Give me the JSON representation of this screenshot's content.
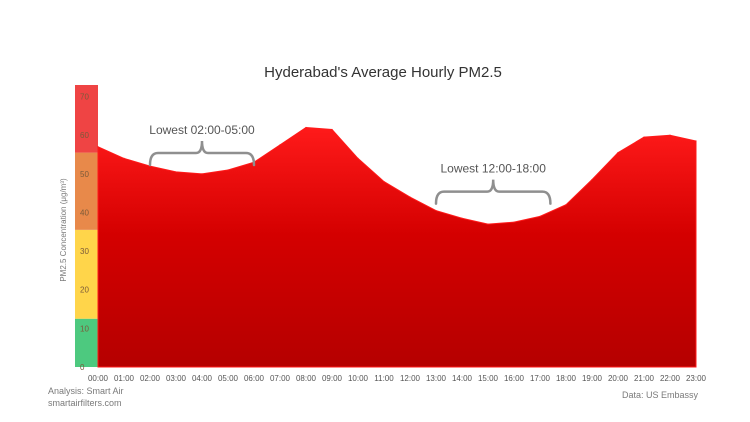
{
  "chart_data": {
    "type": "area",
    "title": "Hyderabad's Average Hourly PM2.5",
    "ylabel": "PM2.5 Concentration (μg/m³)",
    "xlabel": "",
    "ylim": [
      0,
      73
    ],
    "grid": false,
    "x": [
      "00:00",
      "01:00",
      "02:00",
      "03:00",
      "04:00",
      "05:00",
      "06:00",
      "07:00",
      "08:00",
      "09:00",
      "10:00",
      "11:00",
      "12:00",
      "13:00",
      "14:00",
      "15:00",
      "16:00",
      "17:00",
      "18:00",
      "19:00",
      "20:00",
      "21:00",
      "22:00",
      "23:00"
    ],
    "series": [
      {
        "values": [
          57,
          54,
          52,
          50.5,
          50,
          51,
          53,
          57.5,
          62,
          61.5,
          54,
          48,
          44,
          40.5,
          38.5,
          37,
          37.5,
          39,
          42,
          48.5,
          55.5,
          59.5,
          60,
          58.5
        ],
        "color": "#e60000"
      }
    ],
    "y_ticks": [
      0,
      10,
      20,
      30,
      40,
      50,
      60,
      70
    ],
    "aqi_bands": [
      {
        "from": 0,
        "to": 12.5,
        "color": "#4dc97f"
      },
      {
        "from": 12.5,
        "to": 35.5,
        "color": "#ffd54a"
      },
      {
        "from": 35.5,
        "to": 55.5,
        "color": "#e8894a"
      },
      {
        "from": 55.5,
        "to": 73,
        "color": "#ef4444"
      }
    ],
    "annotations": [
      {
        "text": "Lowest 02:00-05:00",
        "from": 2,
        "to": 6,
        "y": 51
      },
      {
        "text": "Lowest 12:00-18:00",
        "from": 13,
        "to": 17.4,
        "y": 41
      }
    ]
  },
  "credits": {
    "analysis_line1": "Analysis: Smart Air",
    "analysis_line2": "smartairfilters.com",
    "data_source": "Data: US Embassy"
  }
}
